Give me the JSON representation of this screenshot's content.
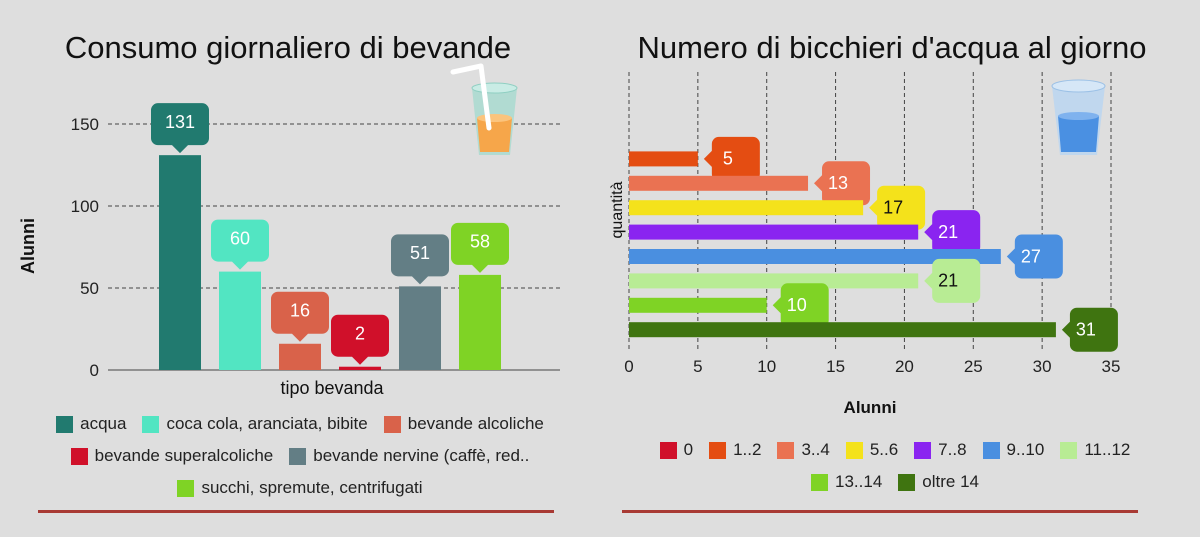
{
  "chart_data": [
    {
      "type": "bar",
      "title": "Consumo giornaliero di bevande",
      "xlabel": "tipo bevanda",
      "ylabel": "Alunni",
      "ylim": [
        0,
        150
      ],
      "yticks": [
        0,
        50,
        100,
        150
      ],
      "grid": true,
      "legend_position": "bottom",
      "categories": [
        "acqua",
        "coca cola, aranciata, bibite",
        "bevande alcoliche",
        "bevande superalcoliche",
        "bevande nervine (caffè, red..",
        "succhi, spremute, centrifugati"
      ],
      "values": [
        131,
        60,
        16,
        2,
        51,
        58
      ],
      "colors": [
        "#217a6f",
        "#52e5c2",
        "#d9624a",
        "#d0102a",
        "#637e85",
        "#7fd325"
      ],
      "decoration": "juice-glass-icon"
    },
    {
      "type": "bar",
      "orientation": "horizontal",
      "title": "Numero di bicchieri d'acqua al giorno",
      "xlabel": "Alunni",
      "ylabel": "quantità",
      "xlim": [
        0,
        35
      ],
      "xticks": [
        0,
        5,
        10,
        15,
        20,
        25,
        30,
        35
      ],
      "grid": true,
      "legend_position": "bottom",
      "categories": [
        "0",
        "1..2",
        "3..4",
        "5..6",
        "7..8",
        "9..10",
        "11..12",
        "13..14",
        "oltre 14"
      ],
      "values": [
        0,
        5,
        13,
        17,
        21,
        27,
        21,
        10,
        31
      ],
      "colors": [
        "#d0102a",
        "#e44d12",
        "#ea7252",
        "#f4e21b",
        "#8a24f0",
        "#4a8fe0",
        "#b8ec94",
        "#7fd325",
        "#3f7410"
      ],
      "label_text_colors": [
        "#ffffff",
        "#ffffff",
        "#ffffff",
        "#111111",
        "#ffffff",
        "#ffffff",
        "#111111",
        "#ffffff",
        "#ffffff"
      ],
      "decoration": "water-glass-icon"
    }
  ]
}
